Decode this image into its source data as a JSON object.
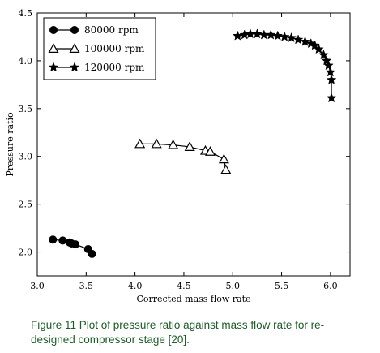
{
  "chart_data": {
    "type": "line",
    "title": "",
    "xlabel": "Corrected mass flow rate",
    "ylabel": "Pressure ratio",
    "xlim": [
      3.0,
      6.2
    ],
    "ylim": [
      1.75,
      4.5
    ],
    "xticks": [
      "3.0",
      "3.5",
      "4.0",
      "4.5",
      "5.0",
      "5.5",
      "6.0"
    ],
    "yticks": [
      "2.0",
      "2.5",
      "3.0",
      "3.5",
      "4.0",
      "4.5"
    ],
    "xtick_values": [
      3.0,
      3.5,
      4.0,
      4.5,
      5.0,
      5.5,
      6.0
    ],
    "ytick_values": [
      2.0,
      2.5,
      3.0,
      3.5,
      4.0,
      4.5
    ],
    "grid": false,
    "legend_position": "top-left",
    "series": [
      {
        "name": "80000 rpm",
        "marker": "circle",
        "x": [
          3.16,
          3.26,
          3.33,
          3.35,
          3.39,
          3.52,
          3.56
        ],
        "y": [
          2.13,
          2.12,
          2.1,
          2.09,
          2.08,
          2.03,
          1.98
        ]
      },
      {
        "name": "100000 rpm",
        "marker": "triangle",
        "x": [
          4.05,
          4.22,
          4.39,
          4.56,
          4.72,
          4.77,
          4.91,
          4.93
        ],
        "y": [
          3.13,
          3.13,
          3.12,
          3.1,
          3.06,
          3.05,
          2.97,
          2.86
        ]
      },
      {
        "name": "120000 rpm",
        "marker": "star",
        "x": [
          5.05,
          5.12,
          5.18,
          5.25,
          5.32,
          5.39,
          5.46,
          5.53,
          5.6,
          5.67,
          5.74,
          5.8,
          5.84,
          5.88,
          5.93,
          5.96,
          5.98,
          6.0,
          6.01,
          6.01
        ],
        "y": [
          4.26,
          4.27,
          4.28,
          4.28,
          4.27,
          4.27,
          4.26,
          4.25,
          4.24,
          4.22,
          4.2,
          4.18,
          4.16,
          4.12,
          4.06,
          4.0,
          3.95,
          3.88,
          3.8,
          3.61
        ]
      }
    ]
  },
  "caption": {
    "line1": "Figure 11  Plot of pressure ratio against mass flow rate for re-",
    "line2": "designed compressor stage [20]."
  }
}
